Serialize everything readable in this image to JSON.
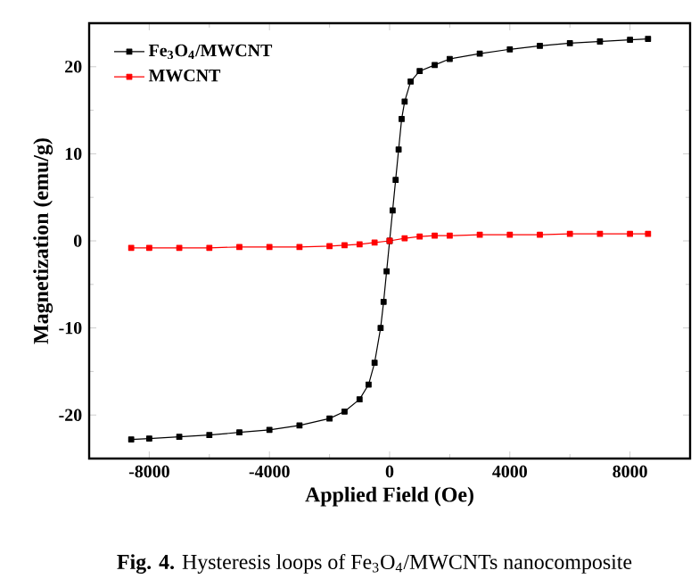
{
  "chart_data": {
    "type": "line",
    "xlabel": "Applied Field (Oe)",
    "ylabel": "Magnetization (emu/g)",
    "xlim": [
      -10000,
      10000
    ],
    "xticks": [
      -8000,
      -4000,
      0,
      4000,
      8000
    ],
    "ylim": [
      -25,
      25
    ],
    "yticks": [
      -20,
      -10,
      0,
      10,
      20
    ],
    "marker": "square",
    "legend": "top left",
    "grid": false,
    "series": [
      {
        "name": "Fe$_{3}$O$_{4}$/MWCNT",
        "color": "#000000",
        "x": [
          -8600,
          -8000,
          -7000,
          -6000,
          -5000,
          -4000,
          -3000,
          -2000,
          -1500,
          -1000,
          -700,
          -500,
          -300,
          -200,
          -100,
          0,
          100,
          200,
          300,
          400,
          500,
          700,
          1000,
          1500,
          2000,
          3000,
          4000,
          5000,
          6000,
          7000,
          8000,
          8600
        ],
        "values": [
          -22.8,
          -22.7,
          -22.5,
          -22.3,
          -22.0,
          -21.7,
          -21.2,
          -20.4,
          -19.6,
          -18.2,
          -16.5,
          -14,
          -10,
          -7,
          -3.5,
          0,
          3.5,
          7,
          10.5,
          14,
          16,
          18.3,
          19.5,
          20.2,
          20.9,
          21.5,
          22.0,
          22.4,
          22.7,
          22.9,
          23.1,
          23.2
        ]
      },
      {
        "name": "MWCNT",
        "color": "#ff0000",
        "x": [
          -8600,
          -8000,
          -7000,
          -6000,
          -5000,
          -4000,
          -3000,
          -2000,
          -1500,
          -1000,
          -500,
          0,
          500,
          1000,
          1500,
          2000,
          3000,
          4000,
          5000,
          6000,
          7000,
          8000,
          8600
        ],
        "values": [
          -0.8,
          -0.8,
          -0.8,
          -0.8,
          -0.7,
          -0.7,
          -0.7,
          -0.6,
          -0.5,
          -0.4,
          -0.2,
          0,
          0.3,
          0.5,
          0.6,
          0.6,
          0.7,
          0.7,
          0.7,
          0.8,
          0.8,
          0.8,
          0.8
        ]
      }
    ],
    "annotations": [
      "**Fig. 4.** Hysteresis loops of Fe$_{3}$O$_{4}$/MWCNTs nanocomposite"
    ]
  }
}
